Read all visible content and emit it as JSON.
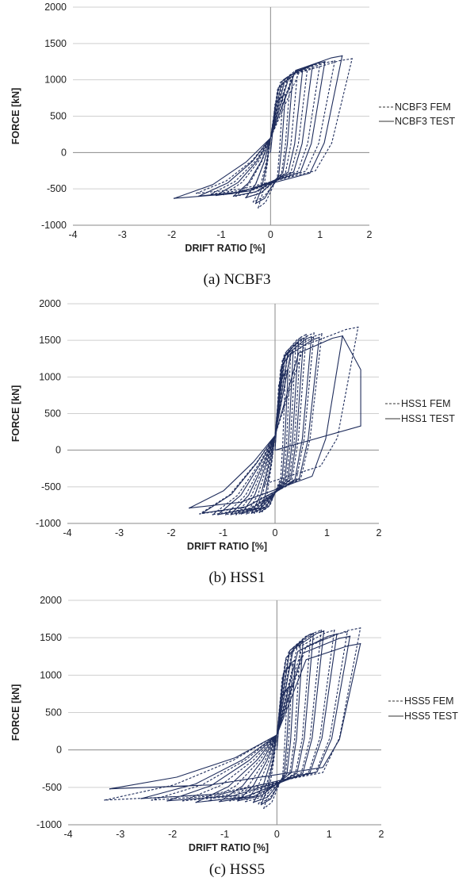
{
  "chart_data": [
    {
      "type": "line",
      "caption": "(a)  NCBF3",
      "xlabel": "DRIFT RATIO [%]",
      "ylabel": "FORCE [kN]",
      "xlim": [
        -4,
        2
      ],
      "ylim": [
        -1000,
        2000
      ],
      "x_ticks": [
        -4,
        -3,
        -2,
        -1,
        0,
        1,
        2
      ],
      "y_ticks": [
        -1000,
        -500,
        0,
        500,
        1000,
        1500,
        2000
      ],
      "grid": "horizontal",
      "legend_position": "right",
      "color": "#1f2d5c",
      "series": [
        {
          "name": "NCBF3 FEM",
          "style": "dashed",
          "cycles": [
            {
              "peak": [
                0.25,
                780
              ],
              "trough": [
                -0.25,
                -760
              ]
            },
            {
              "peak": [
                0.4,
                1020
              ],
              "trough": [
                -0.35,
                -680
              ]
            },
            {
              "peak": [
                0.55,
                1130
              ],
              "trough": [
                -0.5,
                -620
              ]
            },
            {
              "peak": [
                0.75,
                1180
              ],
              "trough": [
                -0.7,
                -600
              ]
            },
            {
              "peak": [
                1.0,
                1220
              ],
              "trough": [
                -0.95,
                -580
              ]
            },
            {
              "peak": [
                1.3,
                1260
              ],
              "trough": [
                -1.2,
                -570
              ]
            },
            {
              "peak": [
                1.65,
                1290
              ],
              "trough": [
                -1.5,
                -560
              ]
            }
          ]
        },
        {
          "name": "NCBF3 TEST",
          "style": "solid",
          "cycles": [
            {
              "peak": [
                0.3,
                800
              ],
              "trough": [
                -0.3,
                -700
              ]
            },
            {
              "peak": [
                0.45,
                1050
              ],
              "trough": [
                -0.5,
                -620
              ]
            },
            {
              "peak": [
                0.65,
                1150
              ],
              "trough": [
                -0.75,
                -600
              ]
            },
            {
              "peak": [
                0.85,
                1200
              ],
              "trough": [
                -1.1,
                -590
              ]
            },
            {
              "peak": [
                1.1,
                1250
              ],
              "trough": [
                -1.45,
                -600
              ]
            },
            {
              "peak": [
                1.45,
                1330
              ],
              "trough": [
                -1.95,
                -630
              ]
            }
          ]
        }
      ]
    },
    {
      "type": "line",
      "caption": "(b)  HSS1",
      "xlabel": "DRIFT RATIO [%]",
      "ylabel": "FORCE [kN]",
      "xlim": [
        -4,
        2
      ],
      "ylim": [
        -1000,
        2000
      ],
      "x_ticks": [
        -4,
        -3,
        -2,
        -1,
        0,
        1,
        2
      ],
      "y_ticks": [
        -1000,
        -500,
        0,
        500,
        1000,
        1500,
        2000
      ],
      "grid": "horizontal",
      "legend_position": "right",
      "color": "#1f2d5c",
      "series": [
        {
          "name": "HSS1 FEM",
          "style": "dashed",
          "cycles": [
            {
              "peak": [
                0.2,
                1050
              ],
              "trough": [
                -0.25,
                -840
              ]
            },
            {
              "peak": [
                0.3,
                1300
              ],
              "trough": [
                -0.4,
                -860
              ]
            },
            {
              "peak": [
                0.4,
                1450
              ],
              "trough": [
                -0.55,
                -870
              ]
            },
            {
              "peak": [
                0.5,
                1540
              ],
              "trough": [
                -0.75,
                -880
              ]
            },
            {
              "peak": [
                0.6,
                1580
              ],
              "trough": [
                -0.95,
                -880
              ]
            },
            {
              "peak": [
                0.75,
                1600
              ],
              "trough": [
                -1.2,
                -880
              ]
            },
            {
              "peak": [
                0.9,
                1590
              ],
              "trough": [
                -1.45,
                -870
              ]
            },
            {
              "peak": [
                1.6,
                1680
              ],
              "trough": [
                -0.2,
                -480
              ]
            }
          ]
        },
        {
          "name": "HSS1 TEST",
          "style": "solid",
          "cycles": [
            {
              "peak": [
                0.25,
                1100
              ],
              "trough": [
                -0.3,
                -850
              ]
            },
            {
              "peak": [
                0.35,
                1350
              ],
              "trough": [
                -0.45,
                -860
              ]
            },
            {
              "peak": [
                0.45,
                1470
              ],
              "trough": [
                -0.65,
                -870
              ]
            },
            {
              "peak": [
                0.55,
                1530
              ],
              "trough": [
                -0.85,
                -880
              ]
            },
            {
              "peak": [
                0.7,
                1550
              ],
              "trough": [
                -1.1,
                -880
              ]
            },
            {
              "peak": [
                0.85,
                1540
              ],
              "trough": [
                -1.4,
                -860
              ]
            },
            {
              "peak": [
                1.3,
                1560
              ],
              "trough": [
                -1.65,
                -790
              ]
            }
          ],
          "excursion": [
            [
              1.3,
              1560
            ],
            [
              1.65,
              1100
            ],
            [
              1.65,
              330
            ],
            [
              0.5,
              100
            ],
            [
              0.0,
              0
            ]
          ]
        }
      ]
    },
    {
      "type": "line",
      "caption": "(c)  HSS5",
      "xlabel": "DRIFT RATIO [%]",
      "ylabel": "FORCE [kN]",
      "xlim": [
        -4,
        2
      ],
      "ylim": [
        -1000,
        2000
      ],
      "x_ticks": [
        -4,
        -3,
        -2,
        -1,
        0,
        1,
        2
      ],
      "y_ticks": [
        -1000,
        -500,
        0,
        500,
        1000,
        1500,
        2000
      ],
      "grid": "horizontal",
      "legend_position": "right",
      "color": "#1f2d5c",
      "series": [
        {
          "name": "HSS5 FEM",
          "style": "dashed",
          "cycles": [
            {
              "peak": [
                0.2,
                800
              ],
              "trough": [
                -0.25,
                -780
              ]
            },
            {
              "peak": [
                0.3,
                1150
              ],
              "trough": [
                -0.35,
                -720
              ]
            },
            {
              "peak": [
                0.45,
                1400
              ],
              "trough": [
                -0.6,
                -690
              ]
            },
            {
              "peak": [
                0.65,
                1550
              ],
              "trough": [
                -0.9,
                -680
              ]
            },
            {
              "peak": [
                0.85,
                1600
              ],
              "trough": [
                -1.3,
                -680
              ]
            },
            {
              "peak": [
                1.1,
                1600
              ],
              "trough": [
                -1.8,
                -680
              ]
            },
            {
              "peak": [
                1.35,
                1580
              ],
              "trough": [
                -2.4,
                -670
              ]
            },
            {
              "peak": [
                1.6,
                1630
              ],
              "trough": [
                -3.3,
                -670
              ]
            }
          ]
        },
        {
          "name": "HSS5 TEST",
          "style": "solid",
          "cycles": [
            {
              "peak": [
                0.25,
                850
              ],
              "trough": [
                -0.3,
                -730
              ]
            },
            {
              "peak": [
                0.35,
                1200
              ],
              "trough": [
                -0.45,
                -700
              ]
            },
            {
              "peak": [
                0.5,
                1450
              ],
              "trough": [
                -0.75,
                -680
              ]
            },
            {
              "peak": [
                0.7,
                1560
              ],
              "trough": [
                -1.1,
                -690
              ]
            },
            {
              "peak": [
                0.9,
                1590
              ],
              "trough": [
                -1.55,
                -700
              ]
            },
            {
              "peak": [
                1.15,
                1550
              ],
              "trough": [
                -2.1,
                -680
              ]
            },
            {
              "peak": [
                1.4,
                1520
              ],
              "trough": [
                -2.6,
                -650
              ]
            },
            {
              "peak": [
                1.6,
                1420
              ],
              "trough": [
                -3.2,
                -520
              ]
            }
          ]
        }
      ]
    }
  ]
}
